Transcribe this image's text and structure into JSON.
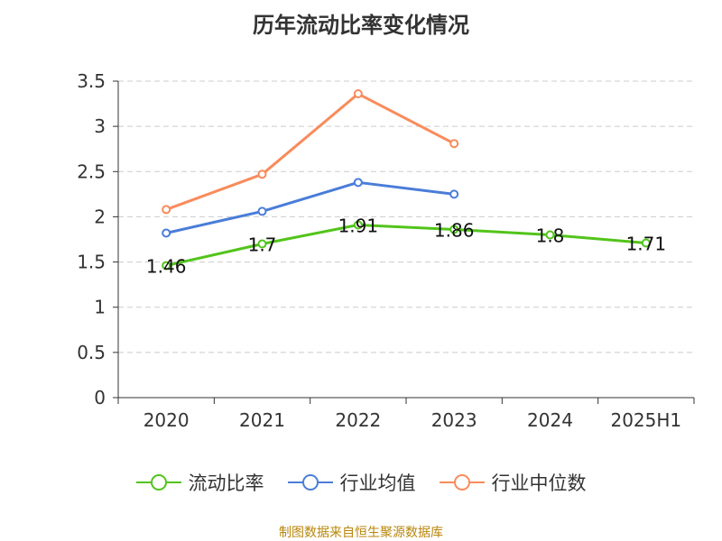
{
  "title": "历年流动比率变化情况",
  "source_note": "制图数据来自恒生聚源数据库",
  "colors": {
    "current_ratio": "#52c41a",
    "industry_mean": "#4a7dd9",
    "industry_median": "#f98b5c",
    "grid": "#cccccc",
    "axis": "#333333",
    "text": "#333333"
  },
  "legend": [
    {
      "key": "current_ratio",
      "label": "流动比率"
    },
    {
      "key": "industry_mean",
      "label": "行业均值"
    },
    {
      "key": "industry_median",
      "label": "行业中位数"
    }
  ],
  "chart_data": {
    "type": "line",
    "title": "历年流动比率变化情况",
    "categories": [
      "2020",
      "2021",
      "2022",
      "2023",
      "2024",
      "2025H1"
    ],
    "ylim": [
      0,
      3.5
    ],
    "yticks": [
      "0",
      "0.5",
      "1",
      "1.5",
      "2",
      "2.5",
      "3",
      "3.5"
    ],
    "grid": true,
    "legend_position": "bottom",
    "series": [
      {
        "key": "current_ratio",
        "name": "流动比率",
        "values": [
          1.46,
          1.7,
          1.91,
          1.86,
          1.8,
          1.71
        ],
        "labels": [
          "1.46",
          "1.7",
          "1.91",
          "1.86",
          "1.8",
          "1.71"
        ]
      },
      {
        "key": "industry_mean",
        "name": "行业均值",
        "values": [
          1.82,
          2.06,
          2.38,
          2.25,
          null,
          null
        ]
      },
      {
        "key": "industry_median",
        "name": "行业中位数",
        "values": [
          2.08,
          2.47,
          3.36,
          2.81,
          null,
          null
        ]
      }
    ]
  }
}
